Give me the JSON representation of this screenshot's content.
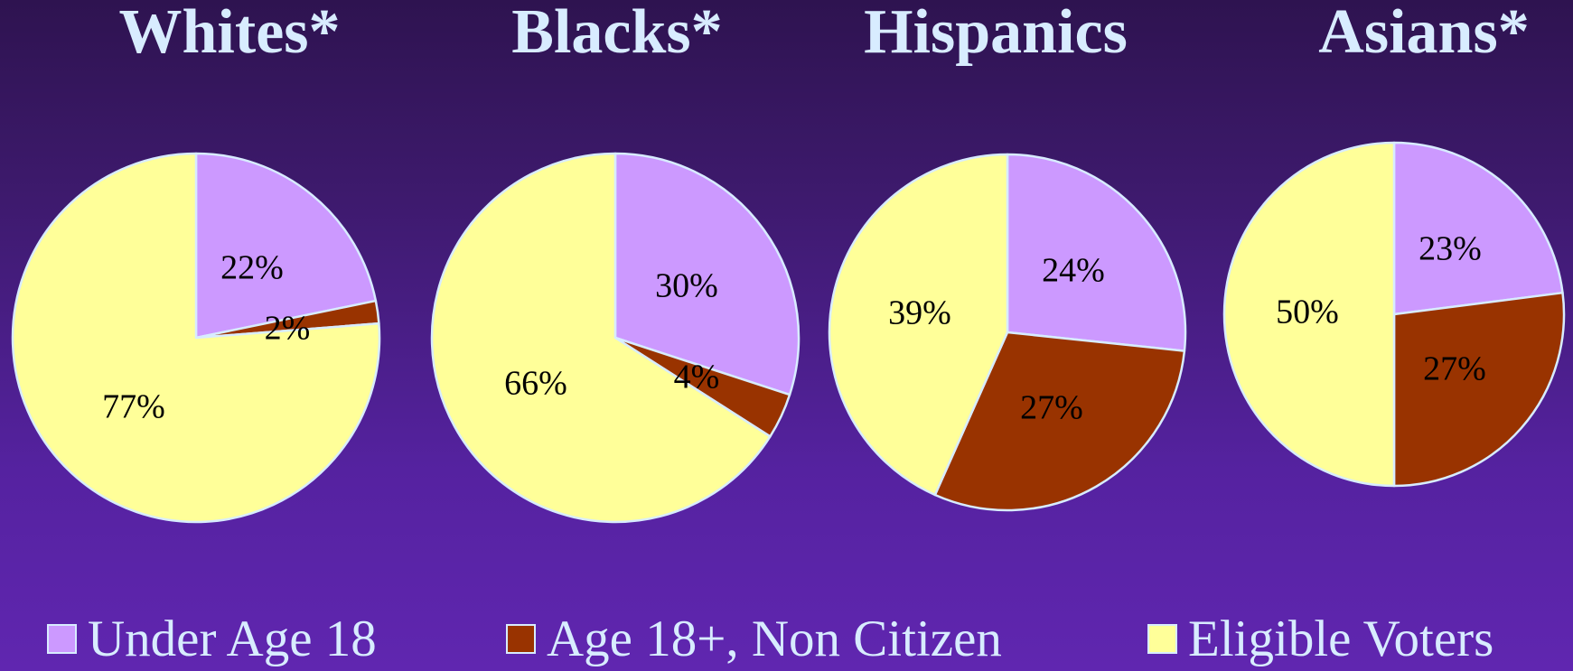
{
  "chart_data": [
    {
      "type": "pie",
      "title": "Whites*",
      "categories": [
        "Under Age 18",
        "Age 18+, Non Citizen",
        "Eligible Voters"
      ],
      "values": [
        22,
        2,
        77
      ],
      "labels": [
        "22%",
        "2%",
        "77%"
      ]
    },
    {
      "type": "pie",
      "title": "Blacks*",
      "categories": [
        "Under Age 18",
        "Age 18+, Non Citizen",
        "Eligible Voters"
      ],
      "values": [
        30,
        4,
        66
      ],
      "labels": [
        "30%",
        "4%",
        "66%"
      ]
    },
    {
      "type": "pie",
      "title": "Hispanics",
      "categories": [
        "Under Age 18",
        "Age 18+, Non Citizen",
        "Eligible Voters"
      ],
      "values": [
        24,
        27,
        39
      ],
      "labels": [
        "24%",
        "27%",
        "39%"
      ]
    },
    {
      "type": "pie",
      "title": "Asians*",
      "categories": [
        "Under Age 18",
        "Age 18+, Non Citizen",
        "Eligible Voters"
      ],
      "values": [
        23,
        27,
        50
      ],
      "labels": [
        "23%",
        "27%",
        "50%"
      ]
    }
  ],
  "legend": {
    "placement": "bottom",
    "items": [
      {
        "label": "Under Age 18",
        "color": "#cc99ff"
      },
      {
        "label": "Age 18+, Non Citizen",
        "color": "#993300"
      },
      {
        "label": "Eligible Voters",
        "color": "#ffff99"
      }
    ]
  },
  "colors": {
    "slice_border": "#d8ecff",
    "text": "#d8ecff"
  }
}
